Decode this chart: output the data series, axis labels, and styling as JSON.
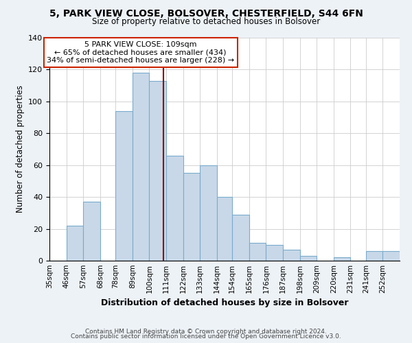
{
  "title": "5, PARK VIEW CLOSE, BOLSOVER, CHESTERFIELD, S44 6FN",
  "subtitle": "Size of property relative to detached houses in Bolsover",
  "xlabel": "Distribution of detached houses by size in Bolsover",
  "ylabel": "Number of detached properties",
  "bar_color": "#c8d8e8",
  "bar_edge_color": "#7aabcc",
  "categories": [
    "35sqm",
    "46sqm",
    "57sqm",
    "68sqm",
    "78sqm",
    "89sqm",
    "100sqm",
    "111sqm",
    "122sqm",
    "133sqm",
    "144sqm",
    "154sqm",
    "165sqm",
    "176sqm",
    "187sqm",
    "198sqm",
    "209sqm",
    "220sqm",
    "231sqm",
    "241sqm",
    "252sqm"
  ],
  "values": [
    0,
    22,
    37,
    0,
    94,
    118,
    113,
    66,
    55,
    60,
    40,
    29,
    11,
    10,
    7,
    3,
    0,
    2,
    0,
    6,
    6
  ],
  "ylim": [
    0,
    140
  ],
  "yticks": [
    0,
    20,
    40,
    60,
    80,
    100,
    120,
    140
  ],
  "annotation_text_line1": "5 PARK VIEW CLOSE: 109sqm",
  "annotation_text_line2": "← 65% of detached houses are smaller (434)",
  "annotation_text_line3": "34% of semi-detached houses are larger (228) →",
  "vline_x": 109,
  "vline_color": "#8b0000",
  "footer1": "Contains HM Land Registry data © Crown copyright and database right 2024.",
  "footer2": "Contains public sector information licensed under the Open Government Licence v3.0.",
  "background_color": "#edf2f7",
  "plot_bg_color": "#ffffff"
}
